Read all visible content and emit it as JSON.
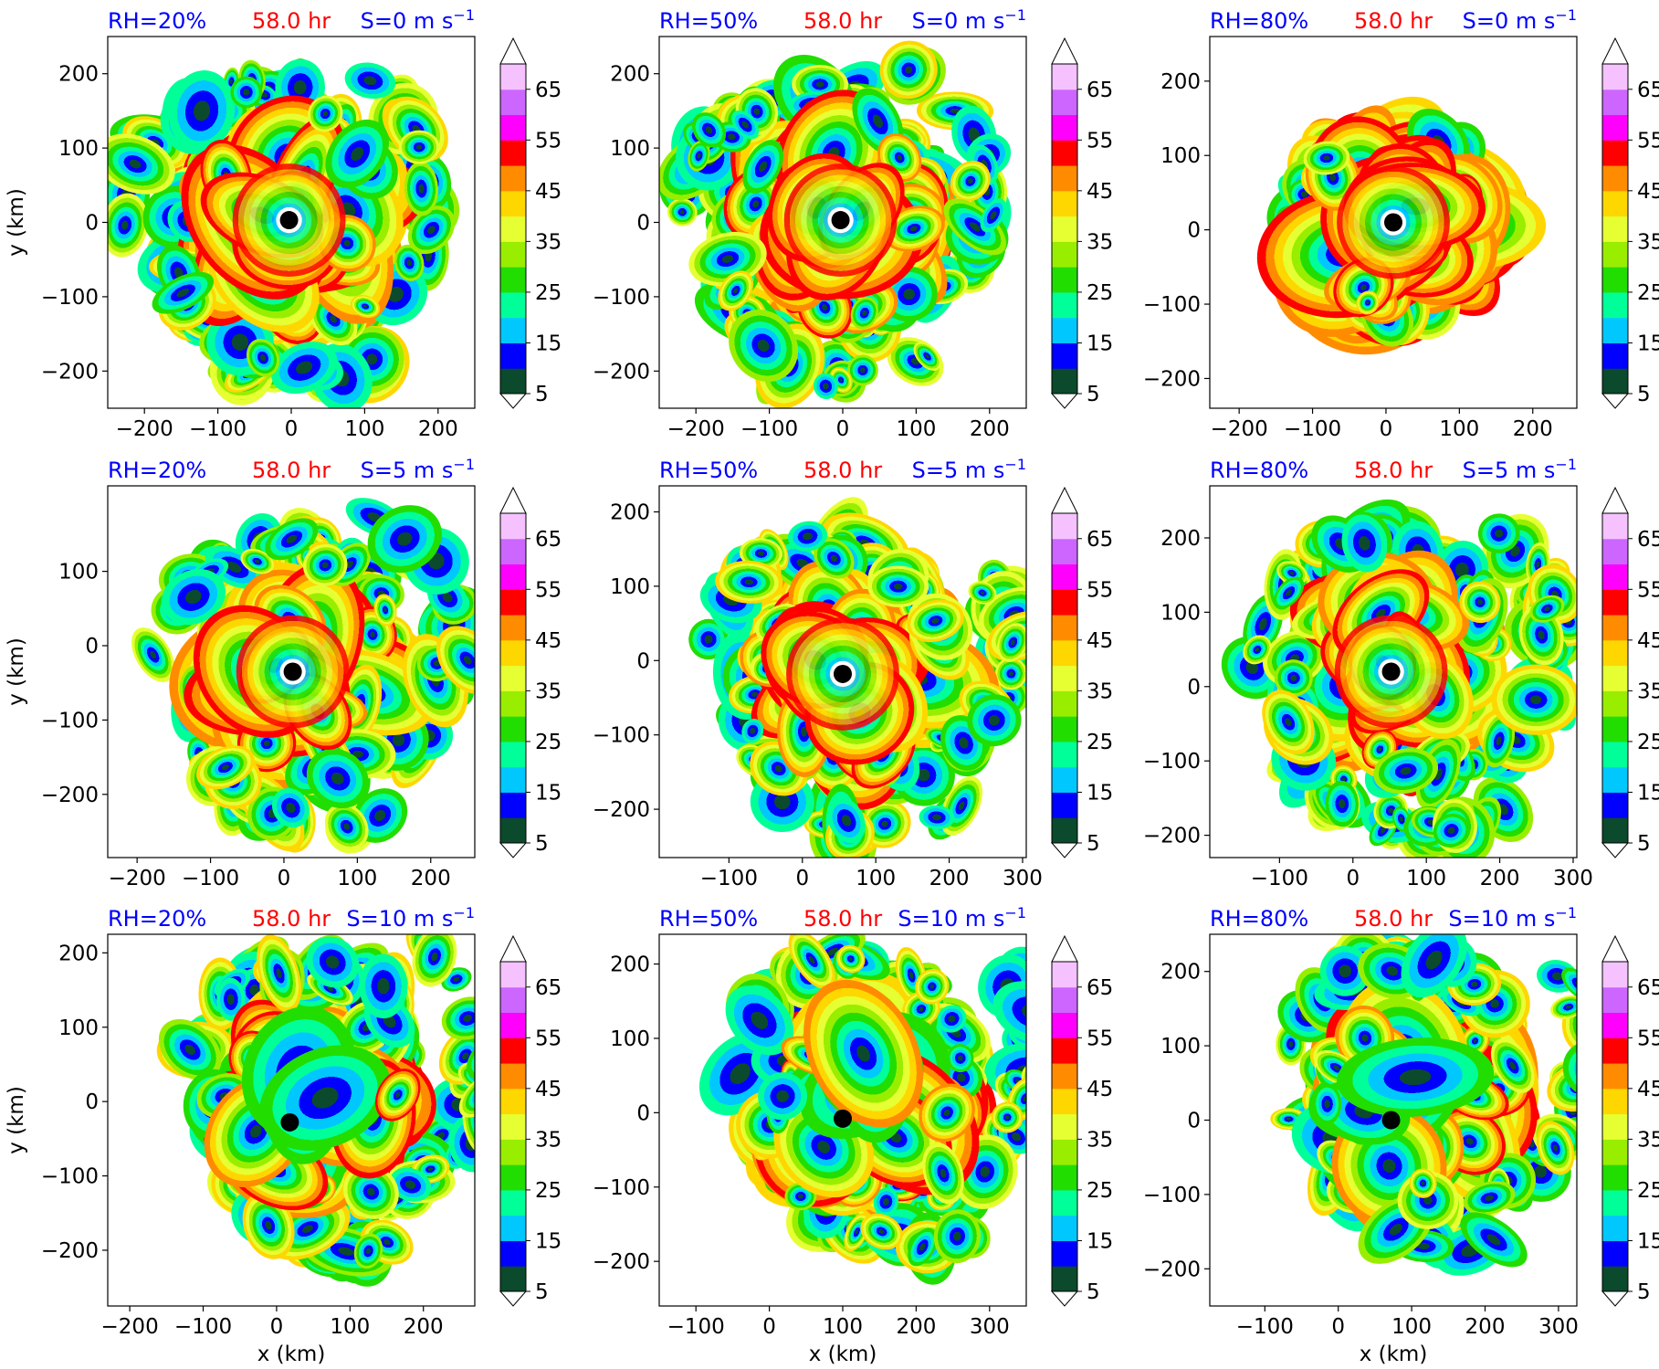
{
  "figure": {
    "xlabel": "x (km)",
    "ylabel": "y (km)",
    "colorbar": {
      "levels": [
        5,
        10,
        15,
        20,
        25,
        30,
        35,
        40,
        45,
        50,
        55,
        60,
        65,
        70
      ],
      "tick_labels": [
        "5",
        "15",
        "25",
        "35",
        "45",
        "55",
        "65"
      ],
      "colors": [
        "#0b4a2c",
        "#0000ff",
        "#00c8ff",
        "#00ff99",
        "#22dd00",
        "#99ee00",
        "#e6ff33",
        "#ffd700",
        "#ff8c00",
        "#ff0000",
        "#ff00ff",
        "#cc66ff",
        "#f5c2ff"
      ],
      "extend": "both"
    }
  },
  "chart_data": [
    {
      "type": "heatmap",
      "rh": "RH=20%",
      "time": "58.0 hr",
      "shear": "S=0 m s",
      "shear_exp": "−1",
      "xlim": [
        -250,
        250
      ],
      "ylim": [
        -250,
        250
      ],
      "xticks": [
        "−200",
        "−100",
        "0",
        "100",
        "200"
      ],
      "yticks": [
        "200",
        "100",
        "0",
        "−100",
        "−200"
      ],
      "center": [
        -3,
        3
      ],
      "show_xlabel": false,
      "show_ylabel": true
    },
    {
      "type": "heatmap",
      "rh": "RH=50%",
      "time": "58.0 hr",
      "shear": "S=0 m s",
      "shear_exp": "−1",
      "xlim": [
        -250,
        250
      ],
      "ylim": [
        -250,
        250
      ],
      "xticks": [
        "−200",
        "−100",
        "0",
        "100",
        "200"
      ],
      "yticks": [
        "200",
        "100",
        "0",
        "−100",
        "−200"
      ],
      "center": [
        -3,
        3
      ],
      "show_xlabel": false,
      "show_ylabel": false
    },
    {
      "type": "heatmap",
      "rh": "RH=80%",
      "time": "58.0 hr",
      "shear": "S=0 m s",
      "shear_exp": "−1",
      "xlim": [
        -240,
        260
      ],
      "ylim": [
        -240,
        260
      ],
      "xticks": [
        "−200",
        "−100",
        "0",
        "100",
        "200"
      ],
      "yticks": [
        "200",
        "100",
        "0",
        "−100",
        "−200"
      ],
      "center": [
        10,
        10
      ],
      "show_xlabel": false,
      "show_ylabel": false
    },
    {
      "type": "heatmap",
      "rh": "RH=20%",
      "time": "58.0 hr",
      "shear": "S=5 m s",
      "shear_exp": "−1",
      "xlim": [
        -240,
        260
      ],
      "ylim": [
        -285,
        215
      ],
      "xticks": [
        "−200",
        "−100",
        "0",
        "100",
        "200"
      ],
      "yticks": [
        "100",
        "0",
        "−100",
        "−200"
      ],
      "center": [
        12,
        -35
      ],
      "show_xlabel": false,
      "show_ylabel": true
    },
    {
      "type": "heatmap",
      "rh": "RH=50%",
      "time": "58.0 hr",
      "shear": "S=5 m s",
      "shear_exp": "−1",
      "xlim": [
        -195,
        305
      ],
      "ylim": [
        -265,
        235
      ],
      "xticks": [
        "−100",
        "0",
        "100",
        "200",
        "300"
      ],
      "yticks": [
        "200",
        "100",
        "0",
        "−100",
        "−200"
      ],
      "center": [
        55,
        -18
      ],
      "show_xlabel": false,
      "show_ylabel": false
    },
    {
      "type": "heatmap",
      "rh": "RH=80%",
      "time": "58.0 hr",
      "shear": "S=5 m s",
      "shear_exp": "−1",
      "xlim": [
        -195,
        305
      ],
      "ylim": [
        -230,
        270
      ],
      "xticks": [
        "−100",
        "0",
        "100",
        "200",
        "300"
      ],
      "yticks": [
        "200",
        "100",
        "0",
        "−100",
        "−200"
      ],
      "center": [
        52,
        20
      ],
      "show_xlabel": false,
      "show_ylabel": false
    },
    {
      "type": "heatmap",
      "rh": "RH=20%",
      "time": "58.0 hr",
      "shear": "S=10 m s",
      "shear_exp": "−1",
      "xlim": [
        -230,
        270
      ],
      "ylim": [
        -275,
        225
      ],
      "xticks": [
        "−200",
        "−100",
        "0",
        "100",
        "200"
      ],
      "yticks": [
        "200",
        "100",
        "0",
        "−100",
        "−200"
      ],
      "center": [
        18,
        -28
      ],
      "show_xlabel": true,
      "show_ylabel": true
    },
    {
      "type": "heatmap",
      "rh": "RH=50%",
      "time": "58.0 hr",
      "shear": "S=10 m s",
      "shear_exp": "−1",
      "xlim": [
        -150,
        350
      ],
      "ylim": [
        -260,
        240
      ],
      "xticks": [
        "−100",
        "0",
        "100",
        "200",
        "300"
      ],
      "yticks": [
        "200",
        "100",
        "0",
        "−100",
        "−200"
      ],
      "center": [
        100,
        -8
      ],
      "show_xlabel": true,
      "show_ylabel": false
    },
    {
      "type": "heatmap",
      "rh": "RH=80%",
      "time": "58.0 hr",
      "shear": "S=10 m s",
      "shear_exp": "−1",
      "xlim": [
        -175,
        325
      ],
      "ylim": [
        -250,
        250
      ],
      "xticks": [
        "−100",
        "0",
        "100",
        "200",
        "300"
      ],
      "yticks": [
        "200",
        "100",
        "0",
        "−100",
        "−200"
      ],
      "center": [
        72,
        0
      ],
      "show_xlabel": true,
      "show_ylabel": false
    }
  ]
}
